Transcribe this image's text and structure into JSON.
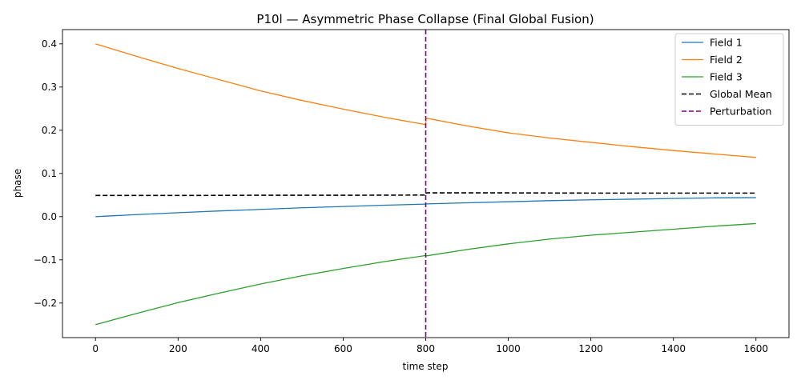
{
  "chart_data": {
    "type": "line",
    "title": "P10l — Asymmetric Phase Collapse (Final Global Fusion)",
    "xlabel": "time step",
    "ylabel": "phase",
    "xlim": [
      -80,
      1680
    ],
    "ylim": [
      -0.28,
      0.433
    ],
    "xticks": [
      0,
      200,
      400,
      600,
      800,
      1000,
      1200,
      1400,
      1600
    ],
    "xtick_labels": [
      "0",
      "200",
      "400",
      "600",
      "800",
      "1000",
      "1200",
      "1400",
      "1600"
    ],
    "yticks": [
      -0.2,
      -0.1,
      0.0,
      0.1,
      0.2,
      0.3,
      0.4
    ],
    "ytick_labels": [
      "−0.2",
      "−0.1",
      "0.0",
      "0.1",
      "0.2",
      "0.3",
      "0.4"
    ],
    "grid": false,
    "legend_position": "top-right",
    "series": [
      {
        "name": "Field 1",
        "color": "#1f77b4",
        "style": "solid",
        "x": [
          0,
          100,
          200,
          300,
          400,
          500,
          600,
          700,
          800,
          801,
          900,
          1000,
          1100,
          1200,
          1300,
          1400,
          1500,
          1600
        ],
        "y": [
          0.0,
          0.0048,
          0.0092,
          0.0132,
          0.0168,
          0.0205,
          0.0235,
          0.0265,
          0.029,
          0.0295,
          0.032,
          0.0345,
          0.037,
          0.039,
          0.0405,
          0.042,
          0.0435,
          0.044
        ]
      },
      {
        "name": "Field 2",
        "color": "#ff7f0e",
        "style": "solid",
        "x": [
          0,
          100,
          200,
          300,
          400,
          500,
          600,
          700,
          800,
          801,
          900,
          1000,
          1100,
          1200,
          1300,
          1400,
          1500,
          1600
        ],
        "y": [
          0.4,
          0.371,
          0.343,
          0.317,
          0.291,
          0.269,
          0.249,
          0.23,
          0.213,
          0.228,
          0.21,
          0.194,
          0.182,
          0.172,
          0.162,
          0.153,
          0.145,
          0.137
        ]
      },
      {
        "name": "Field 3",
        "color": "#2ca02c",
        "style": "solid",
        "x": [
          0,
          100,
          200,
          300,
          400,
          500,
          600,
          700,
          800,
          801,
          900,
          1000,
          1100,
          1200,
          1300,
          1400,
          1500,
          1600
        ],
        "y": [
          -0.25,
          -0.224,
          -0.199,
          -0.177,
          -0.156,
          -0.137,
          -0.12,
          -0.104,
          -0.09,
          -0.091,
          -0.076,
          -0.063,
          -0.052,
          -0.043,
          -0.036,
          -0.029,
          -0.022,
          -0.016
        ]
      },
      {
        "name": "Global Mean",
        "color": "#000000",
        "style": "dashed",
        "x": [
          0,
          200,
          400,
          600,
          800,
          801,
          1000,
          1200,
          1400,
          1600
        ],
        "y": [
          0.049,
          0.049,
          0.0495,
          0.0495,
          0.05,
          0.055,
          0.055,
          0.0545,
          0.0545,
          0.0545
        ]
      }
    ],
    "vlines": [
      {
        "name": "Perturbation",
        "x": 800,
        "color": "#800080",
        "style": "dashed"
      }
    ]
  }
}
